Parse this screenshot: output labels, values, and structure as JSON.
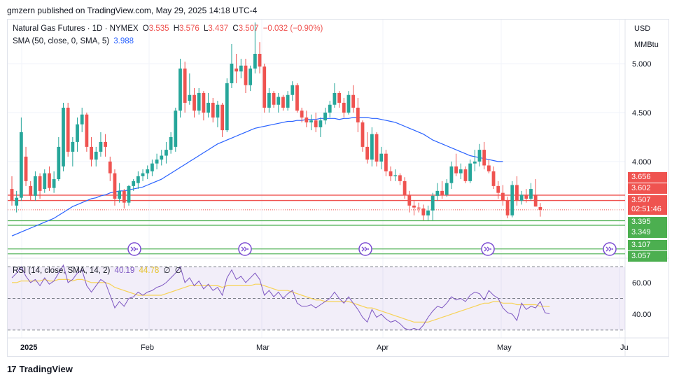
{
  "header": {
    "publisher": "gmzern published on TradingView.com, May 29, 2025 14:18 UTC-4"
  },
  "legend": {
    "symbol": "Natural Gas Futures · 1D · NYMEX",
    "open_label": "O",
    "open": "3.535",
    "high_label": "H",
    "high": "3.576",
    "low_label": "L",
    "low": "3.437",
    "close_label": "C",
    "close": "3.507",
    "change": "−0.032 (−0.90%)",
    "sma_label": "SMA (50, close, 0, SMA, 5)",
    "sma_value": "3.988",
    "rsi_label": "RSI (14, close, SMA, 14, 2)",
    "rsi_value": "40.19",
    "rsi_ma_value": "44.78",
    "rsi_extra1": "∅",
    "rsi_extra2": "∅"
  },
  "price_axis": {
    "currency": "USD",
    "unit": "MMBtu",
    "ticks": [
      "5.000",
      "4.500",
      "4.000",
      "3.395",
      "3.349",
      "3.107",
      "3.057"
    ],
    "tags": [
      {
        "value": "3.656",
        "color": "#ef5350"
      },
      {
        "value": "3.602",
        "color": "#ef5350"
      },
      {
        "value": "3.507",
        "color": "#ef5350"
      },
      {
        "value": "02:51:46",
        "color": "#ef5350"
      },
      {
        "value": "3.395",
        "color": "#4caf50"
      },
      {
        "value": "3.349",
        "color": "#4caf50"
      },
      {
        "value": "3.107",
        "color": "#4caf50"
      },
      {
        "value": "3.057",
        "color": "#4caf50"
      }
    ]
  },
  "rsi_axis": {
    "ticks": [
      "60.00",
      "40.00"
    ]
  },
  "time_axis": {
    "labels": [
      "2025",
      "Feb",
      "Mar",
      "Apr",
      "May",
      "Ju"
    ]
  },
  "colors": {
    "up": "#26a69a",
    "down": "#ef5350",
    "sma": "#2962ff",
    "rsi": "#7e57c2",
    "rsi_ma": "#f7d358",
    "resistance": "#ef5350",
    "support": "#4caf50"
  },
  "footer": {
    "brand": "TradingView"
  },
  "chart_data": {
    "type": "candlestick",
    "ylim": [
      3.02,
      5.45
    ],
    "horizontal_levels": {
      "resistance": [
        3.656,
        3.602
      ],
      "support": [
        3.395,
        3.349,
        3.107,
        3.057
      ]
    },
    "last_close": 3.507,
    "candles": [
      {
        "o": 3.72,
        "h": 3.85,
        "l": 3.55,
        "c": 3.6
      },
      {
        "o": 3.55,
        "h": 3.7,
        "l": 3.48,
        "c": 3.63
      },
      {
        "o": 3.63,
        "h": 4.45,
        "l": 3.6,
        "c": 4.3
      },
      {
        "o": 4.05,
        "h": 4.15,
        "l": 3.75,
        "c": 3.8
      },
      {
        "o": 3.75,
        "h": 3.8,
        "l": 3.6,
        "c": 3.65
      },
      {
        "o": 3.65,
        "h": 3.9,
        "l": 3.6,
        "c": 3.85
      },
      {
        "o": 3.85,
        "h": 3.88,
        "l": 3.62,
        "c": 3.7
      },
      {
        "o": 3.72,
        "h": 3.92,
        "l": 3.68,
        "c": 3.88
      },
      {
        "o": 3.88,
        "h": 3.95,
        "l": 3.7,
        "c": 3.73
      },
      {
        "o": 3.73,
        "h": 3.9,
        "l": 3.68,
        "c": 3.82
      },
      {
        "o": 3.82,
        "h": 4.25,
        "l": 3.8,
        "c": 4.15
      },
      {
        "o": 3.95,
        "h": 4.6,
        "l": 3.9,
        "c": 4.55
      },
      {
        "o": 4.55,
        "h": 4.6,
        "l": 4.05,
        "c": 4.1
      },
      {
        "o": 4.1,
        "h": 4.25,
        "l": 3.95,
        "c": 4.2
      },
      {
        "o": 4.2,
        "h": 4.45,
        "l": 4.1,
        "c": 4.38
      },
      {
        "o": 4.38,
        "h": 4.55,
        "l": 4.3,
        "c": 4.48
      },
      {
        "o": 4.48,
        "h": 4.5,
        "l": 4.1,
        "c": 4.15
      },
      {
        "o": 4.15,
        "h": 4.25,
        "l": 3.95,
        "c": 4.02
      },
      {
        "o": 4.02,
        "h": 4.15,
        "l": 3.95,
        "c": 4.1
      },
      {
        "o": 4.1,
        "h": 4.3,
        "l": 4.05,
        "c": 4.2
      },
      {
        "o": 4.2,
        "h": 4.28,
        "l": 4.05,
        "c": 4.15
      },
      {
        "o": 4.0,
        "h": 4.05,
        "l": 3.8,
        "c": 3.88
      },
      {
        "o": 3.88,
        "h": 3.92,
        "l": 3.55,
        "c": 3.62
      },
      {
        "o": 3.62,
        "h": 3.78,
        "l": 3.58,
        "c": 3.7
      },
      {
        "o": 3.7,
        "h": 3.72,
        "l": 3.52,
        "c": 3.58
      },
      {
        "o": 3.58,
        "h": 3.76,
        "l": 3.55,
        "c": 3.75
      },
      {
        "o": 3.75,
        "h": 3.82,
        "l": 3.7,
        "c": 3.8
      },
      {
        "o": 3.78,
        "h": 3.9,
        "l": 3.72,
        "c": 3.85
      },
      {
        "o": 3.85,
        "h": 3.92,
        "l": 3.8,
        "c": 3.88
      },
      {
        "o": 3.88,
        "h": 3.96,
        "l": 3.82,
        "c": 3.92
      },
      {
        "o": 3.9,
        "h": 4.02,
        "l": 3.85,
        "c": 3.98
      },
      {
        "o": 3.98,
        "h": 4.08,
        "l": 3.92,
        "c": 4.02
      },
      {
        "o": 4.02,
        "h": 4.12,
        "l": 3.96,
        "c": 4.06
      },
      {
        "o": 4.06,
        "h": 4.2,
        "l": 3.98,
        "c": 4.12
      },
      {
        "o": 4.12,
        "h": 4.3,
        "l": 4.08,
        "c": 4.25
      },
      {
        "o": 4.15,
        "h": 4.55,
        "l": 4.1,
        "c": 4.52
      },
      {
        "o": 4.52,
        "h": 5.05,
        "l": 4.45,
        "c": 4.95
      },
      {
        "o": 4.95,
        "h": 5.02,
        "l": 4.5,
        "c": 4.6
      },
      {
        "o": 4.62,
        "h": 4.9,
        "l": 4.58,
        "c": 4.68
      },
      {
        "o": 4.68,
        "h": 4.75,
        "l": 4.45,
        "c": 4.52
      },
      {
        "o": 4.52,
        "h": 4.75,
        "l": 4.48,
        "c": 4.7
      },
      {
        "o": 4.7,
        "h": 4.72,
        "l": 4.42,
        "c": 4.5
      },
      {
        "o": 4.5,
        "h": 4.7,
        "l": 4.45,
        "c": 4.6
      },
      {
        "o": 4.6,
        "h": 4.65,
        "l": 4.4,
        "c": 4.45
      },
      {
        "o": 4.45,
        "h": 4.62,
        "l": 4.35,
        "c": 4.58
      },
      {
        "o": 4.58,
        "h": 4.6,
        "l": 4.25,
        "c": 4.32
      },
      {
        "o": 4.32,
        "h": 4.85,
        "l": 4.3,
        "c": 4.8
      },
      {
        "o": 4.8,
        "h": 5.2,
        "l": 4.75,
        "c": 5.0
      },
      {
        "o": 4.95,
        "h": 5.1,
        "l": 4.8,
        "c": 4.92
      },
      {
        "o": 4.92,
        "h": 5.05,
        "l": 4.85,
        "c": 4.98
      },
      {
        "o": 4.98,
        "h": 5.05,
        "l": 4.7,
        "c": 4.78
      },
      {
        "o": 4.78,
        "h": 4.98,
        "l": 4.72,
        "c": 4.95
      },
      {
        "o": 4.95,
        "h": 5.42,
        "l": 4.9,
        "c": 5.1
      },
      {
        "o": 5.1,
        "h": 5.22,
        "l": 4.9,
        "c": 4.97
      },
      {
        "o": 4.97,
        "h": 5.0,
        "l": 4.5,
        "c": 4.55
      },
      {
        "o": 4.55,
        "h": 4.75,
        "l": 4.5,
        "c": 4.7
      },
      {
        "o": 4.7,
        "h": 4.72,
        "l": 4.55,
        "c": 4.58
      },
      {
        "o": 4.58,
        "h": 4.7,
        "l": 4.5,
        "c": 4.66
      },
      {
        "o": 4.66,
        "h": 4.68,
        "l": 4.52,
        "c": 4.55
      },
      {
        "o": 4.55,
        "h": 4.72,
        "l": 4.52,
        "c": 4.68
      },
      {
        "o": 4.68,
        "h": 4.82,
        "l": 4.62,
        "c": 4.78
      },
      {
        "o": 4.78,
        "h": 4.8,
        "l": 4.5,
        "c": 4.52
      },
      {
        "o": 4.52,
        "h": 4.55,
        "l": 4.4,
        "c": 4.45
      },
      {
        "o": 4.45,
        "h": 4.52,
        "l": 4.35,
        "c": 4.4
      },
      {
        "o": 4.4,
        "h": 4.48,
        "l": 4.32,
        "c": 4.42
      },
      {
        "o": 4.42,
        "h": 4.5,
        "l": 4.3,
        "c": 4.35
      },
      {
        "o": 4.35,
        "h": 4.45,
        "l": 4.25,
        "c": 4.42
      },
      {
        "o": 4.42,
        "h": 4.55,
        "l": 4.38,
        "c": 4.5
      },
      {
        "o": 4.5,
        "h": 4.62,
        "l": 4.45,
        "c": 4.58
      },
      {
        "o": 4.58,
        "h": 4.8,
        "l": 4.55,
        "c": 4.7
      },
      {
        "o": 4.7,
        "h": 4.72,
        "l": 4.55,
        "c": 4.6
      },
      {
        "o": 4.6,
        "h": 4.65,
        "l": 4.45,
        "c": 4.5
      },
      {
        "o": 4.5,
        "h": 4.72,
        "l": 4.48,
        "c": 4.68
      },
      {
        "o": 4.68,
        "h": 4.78,
        "l": 4.5,
        "c": 4.55
      },
      {
        "o": 4.55,
        "h": 4.65,
        "l": 4.3,
        "c": 4.4
      },
      {
        "o": 4.4,
        "h": 4.42,
        "l": 4.1,
        "c": 4.15
      },
      {
        "o": 4.15,
        "h": 4.3,
        "l": 3.98,
        "c": 4.02
      },
      {
        "o": 4.02,
        "h": 4.35,
        "l": 3.95,
        "c": 4.28
      },
      {
        "o": 4.28,
        "h": 4.3,
        "l": 3.95,
        "c": 4.0
      },
      {
        "o": 4.0,
        "h": 4.15,
        "l": 3.92,
        "c": 4.08
      },
      {
        "o": 4.08,
        "h": 4.12,
        "l": 3.85,
        "c": 3.9
      },
      {
        "o": 3.9,
        "h": 3.95,
        "l": 3.8,
        "c": 3.85
      },
      {
        "o": 3.85,
        "h": 3.92,
        "l": 3.8,
        "c": 3.86
      },
      {
        "o": 3.86,
        "h": 3.88,
        "l": 3.76,
        "c": 3.8
      },
      {
        "o": 3.8,
        "h": 3.84,
        "l": 3.62,
        "c": 3.66
      },
      {
        "o": 3.66,
        "h": 3.7,
        "l": 3.48,
        "c": 3.55
      },
      {
        "o": 3.55,
        "h": 3.6,
        "l": 3.45,
        "c": 3.53
      },
      {
        "o": 3.53,
        "h": 3.58,
        "l": 3.48,
        "c": 3.52
      },
      {
        "o": 3.52,
        "h": 3.56,
        "l": 3.4,
        "c": 3.45
      },
      {
        "o": 3.45,
        "h": 3.55,
        "l": 3.4,
        "c": 3.5
      },
      {
        "o": 3.5,
        "h": 3.68,
        "l": 3.4,
        "c": 3.65
      },
      {
        "o": 3.65,
        "h": 3.78,
        "l": 3.6,
        "c": 3.7
      },
      {
        "o": 3.7,
        "h": 3.8,
        "l": 3.62,
        "c": 3.66
      },
      {
        "o": 3.66,
        "h": 3.82,
        "l": 3.64,
        "c": 3.78
      },
      {
        "o": 3.78,
        "h": 4.0,
        "l": 3.72,
        "c": 3.95
      },
      {
        "o": 3.95,
        "h": 4.08,
        "l": 3.85,
        "c": 3.88
      },
      {
        "o": 3.88,
        "h": 3.98,
        "l": 3.82,
        "c": 3.92
      },
      {
        "o": 3.92,
        "h": 3.95,
        "l": 3.78,
        "c": 3.8
      },
      {
        "o": 3.8,
        "h": 4.02,
        "l": 3.78,
        "c": 3.98
      },
      {
        "o": 3.98,
        "h": 4.12,
        "l": 3.9,
        "c": 4.0
      },
      {
        "o": 4.0,
        "h": 4.18,
        "l": 3.95,
        "c": 4.12
      },
      {
        "o": 4.12,
        "h": 4.2,
        "l": 3.92,
        "c": 3.96
      },
      {
        "o": 3.96,
        "h": 4.02,
        "l": 3.88,
        "c": 3.9
      },
      {
        "o": 3.9,
        "h": 3.95,
        "l": 3.72,
        "c": 3.75
      },
      {
        "o": 3.75,
        "h": 3.8,
        "l": 3.62,
        "c": 3.68
      },
      {
        "o": 3.68,
        "h": 3.76,
        "l": 3.55,
        "c": 3.6
      },
      {
        "o": 3.6,
        "h": 3.64,
        "l": 3.42,
        "c": 3.45
      },
      {
        "o": 3.45,
        "h": 3.8,
        "l": 3.43,
        "c": 3.76
      },
      {
        "o": 3.76,
        "h": 3.85,
        "l": 3.55,
        "c": 3.6
      },
      {
        "o": 3.6,
        "h": 3.7,
        "l": 3.56,
        "c": 3.66
      },
      {
        "o": 3.66,
        "h": 3.72,
        "l": 3.58,
        "c": 3.62
      },
      {
        "o": 3.62,
        "h": 3.78,
        "l": 3.6,
        "c": 3.72
      },
      {
        "o": 3.66,
        "h": 3.82,
        "l": 3.54,
        "c": 3.54
      },
      {
        "o": 3.535,
        "h": 3.576,
        "l": 3.437,
        "c": 3.507
      }
    ],
    "sma": [
      3.24,
      3.26,
      3.28,
      3.3,
      3.32,
      3.34,
      3.36,
      3.38,
      3.4,
      3.42,
      3.45,
      3.48,
      3.51,
      3.54,
      3.56,
      3.58,
      3.6,
      3.62,
      3.63,
      3.65,
      3.66,
      3.68,
      3.69,
      3.7,
      3.7,
      3.71,
      3.72,
      3.73,
      3.74,
      3.76,
      3.78,
      3.8,
      3.82,
      3.85,
      3.88,
      3.91,
      3.94,
      3.97,
      4.0,
      4.03,
      4.06,
      4.09,
      4.12,
      4.15,
      4.18,
      4.2,
      4.22,
      4.24,
      4.26,
      4.28,
      4.3,
      4.32,
      4.34,
      4.35,
      4.36,
      4.37,
      4.38,
      4.39,
      4.4,
      4.41,
      4.41,
      4.42,
      4.42,
      4.43,
      4.43,
      4.43,
      4.44,
      4.44,
      4.44,
      4.44,
      4.43,
      4.44,
      4.44,
      4.45,
      4.45,
      4.45,
      4.45,
      4.44,
      4.44,
      4.43,
      4.42,
      4.41,
      4.4,
      4.38,
      4.36,
      4.34,
      4.32,
      4.3,
      4.28,
      4.25,
      4.22,
      4.2,
      4.18,
      4.16,
      4.14,
      4.12,
      4.1,
      4.08,
      4.06,
      4.05,
      4.04,
      4.03,
      4.02,
      4.01,
      4.0,
      4.0
    ],
    "rsi": {
      "ylim": [
        25,
        75
      ],
      "bands": [
        70,
        30
      ],
      "mid": 50,
      "values": [
        63,
        66,
        70,
        64,
        60,
        62,
        58,
        63,
        59,
        61,
        66,
        71,
        60,
        62,
        66,
        68,
        58,
        54,
        58,
        62,
        60,
        52,
        44,
        48,
        45,
        50,
        51,
        54,
        52,
        54,
        55,
        57,
        58,
        60,
        63,
        66,
        70,
        60,
        63,
        58,
        61,
        56,
        59,
        55,
        57,
        52,
        63,
        68,
        62,
        64,
        60,
        63,
        66,
        62,
        52,
        55,
        51,
        54,
        50,
        53,
        55,
        47,
        45,
        45,
        46,
        44,
        46,
        48,
        50,
        54,
        50,
        47,
        51,
        47,
        43,
        38,
        35,
        43,
        38,
        40,
        37,
        35,
        36,
        34,
        31,
        30,
        31,
        30,
        33,
        38,
        42,
        45,
        44,
        47,
        51,
        49,
        50,
        48,
        52,
        54,
        53,
        49,
        55,
        52,
        50,
        44,
        41,
        40,
        36,
        47,
        43,
        45,
        44,
        48,
        41,
        40.19
      ],
      "ma": [
        60,
        60,
        61,
        61,
        61,
        61,
        61,
        62,
        61,
        61,
        62,
        62,
        62,
        61,
        62,
        62,
        61,
        60,
        60,
        60,
        60,
        59,
        57,
        56,
        55,
        54,
        53,
        52,
        52,
        52,
        52,
        52,
        52,
        53,
        54,
        55,
        56,
        57,
        58,
        58,
        58,
        58,
        58,
        58,
        58,
        57,
        58,
        58,
        58,
        58,
        58,
        58,
        59,
        59,
        58,
        57,
        56,
        55,
        55,
        55,
        54,
        53,
        52,
        51,
        50,
        49,
        49,
        48,
        48,
        48,
        48,
        48,
        48,
        47,
        46,
        45,
        44,
        44,
        43,
        42,
        41,
        40,
        39,
        38,
        37,
        36,
        35,
        35,
        35,
        35,
        36,
        37,
        38,
        39,
        40,
        41,
        42,
        43,
        44,
        45,
        46,
        47,
        47,
        48,
        48,
        47,
        47,
        47,
        46,
        46,
        46,
        46,
        46,
        45,
        45,
        44.78
      ]
    }
  }
}
